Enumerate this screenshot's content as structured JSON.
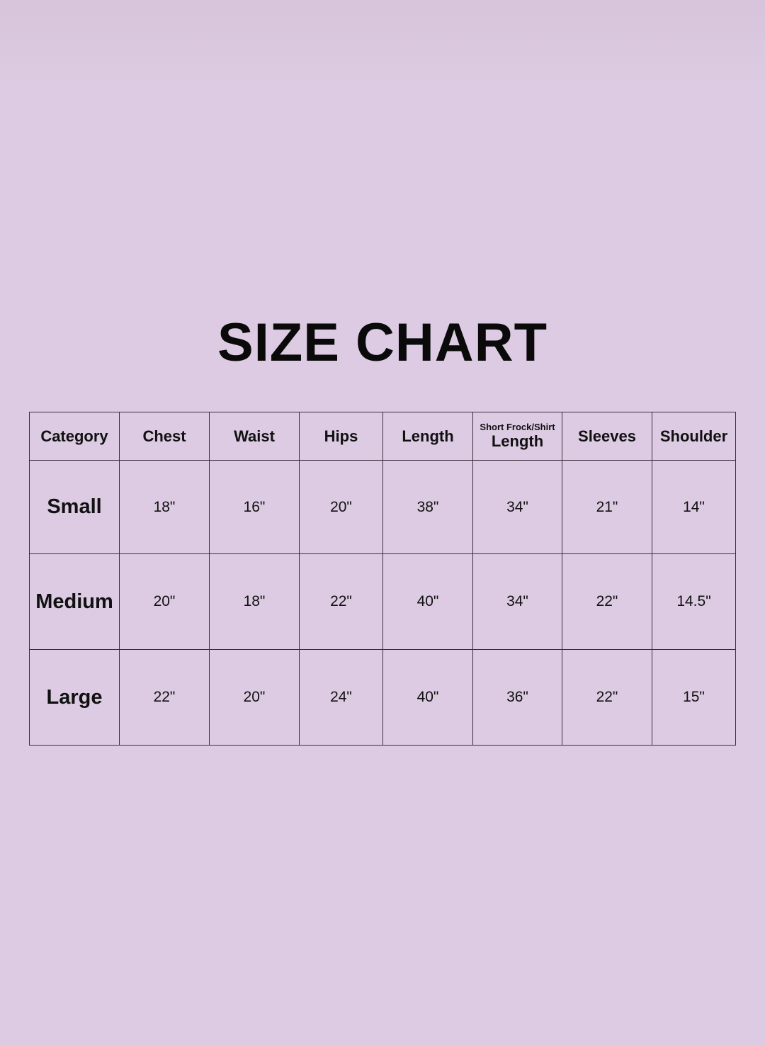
{
  "title": "SIZE CHART",
  "table": {
    "headers": [
      {
        "label": "Category"
      },
      {
        "label": "Chest"
      },
      {
        "label": "Waist"
      },
      {
        "label": "Hips"
      },
      {
        "label": "Length"
      },
      {
        "sublabel": "Short Frock/Shirt",
        "label": "Length"
      },
      {
        "label": "Sleeves"
      },
      {
        "label": "Shoulder"
      }
    ],
    "rows": [
      {
        "category": "Small",
        "values": [
          "18\"",
          "16\"",
          "20\"",
          "38\"",
          "34\"",
          "21\"",
          "14\""
        ]
      },
      {
        "category": "Medium",
        "values": [
          "20\"",
          "18\"",
          "22\"",
          "40\"",
          "34\"",
          "22\"",
          "14.5\""
        ]
      },
      {
        "category": "Large",
        "values": [
          "22\"",
          "20\"",
          "24\"",
          "40\"",
          "36\"",
          "22\"",
          "15\""
        ]
      }
    ]
  },
  "colors": {
    "background": "#dccbe2",
    "border": "#3a2e3e",
    "text": "#111111"
  }
}
